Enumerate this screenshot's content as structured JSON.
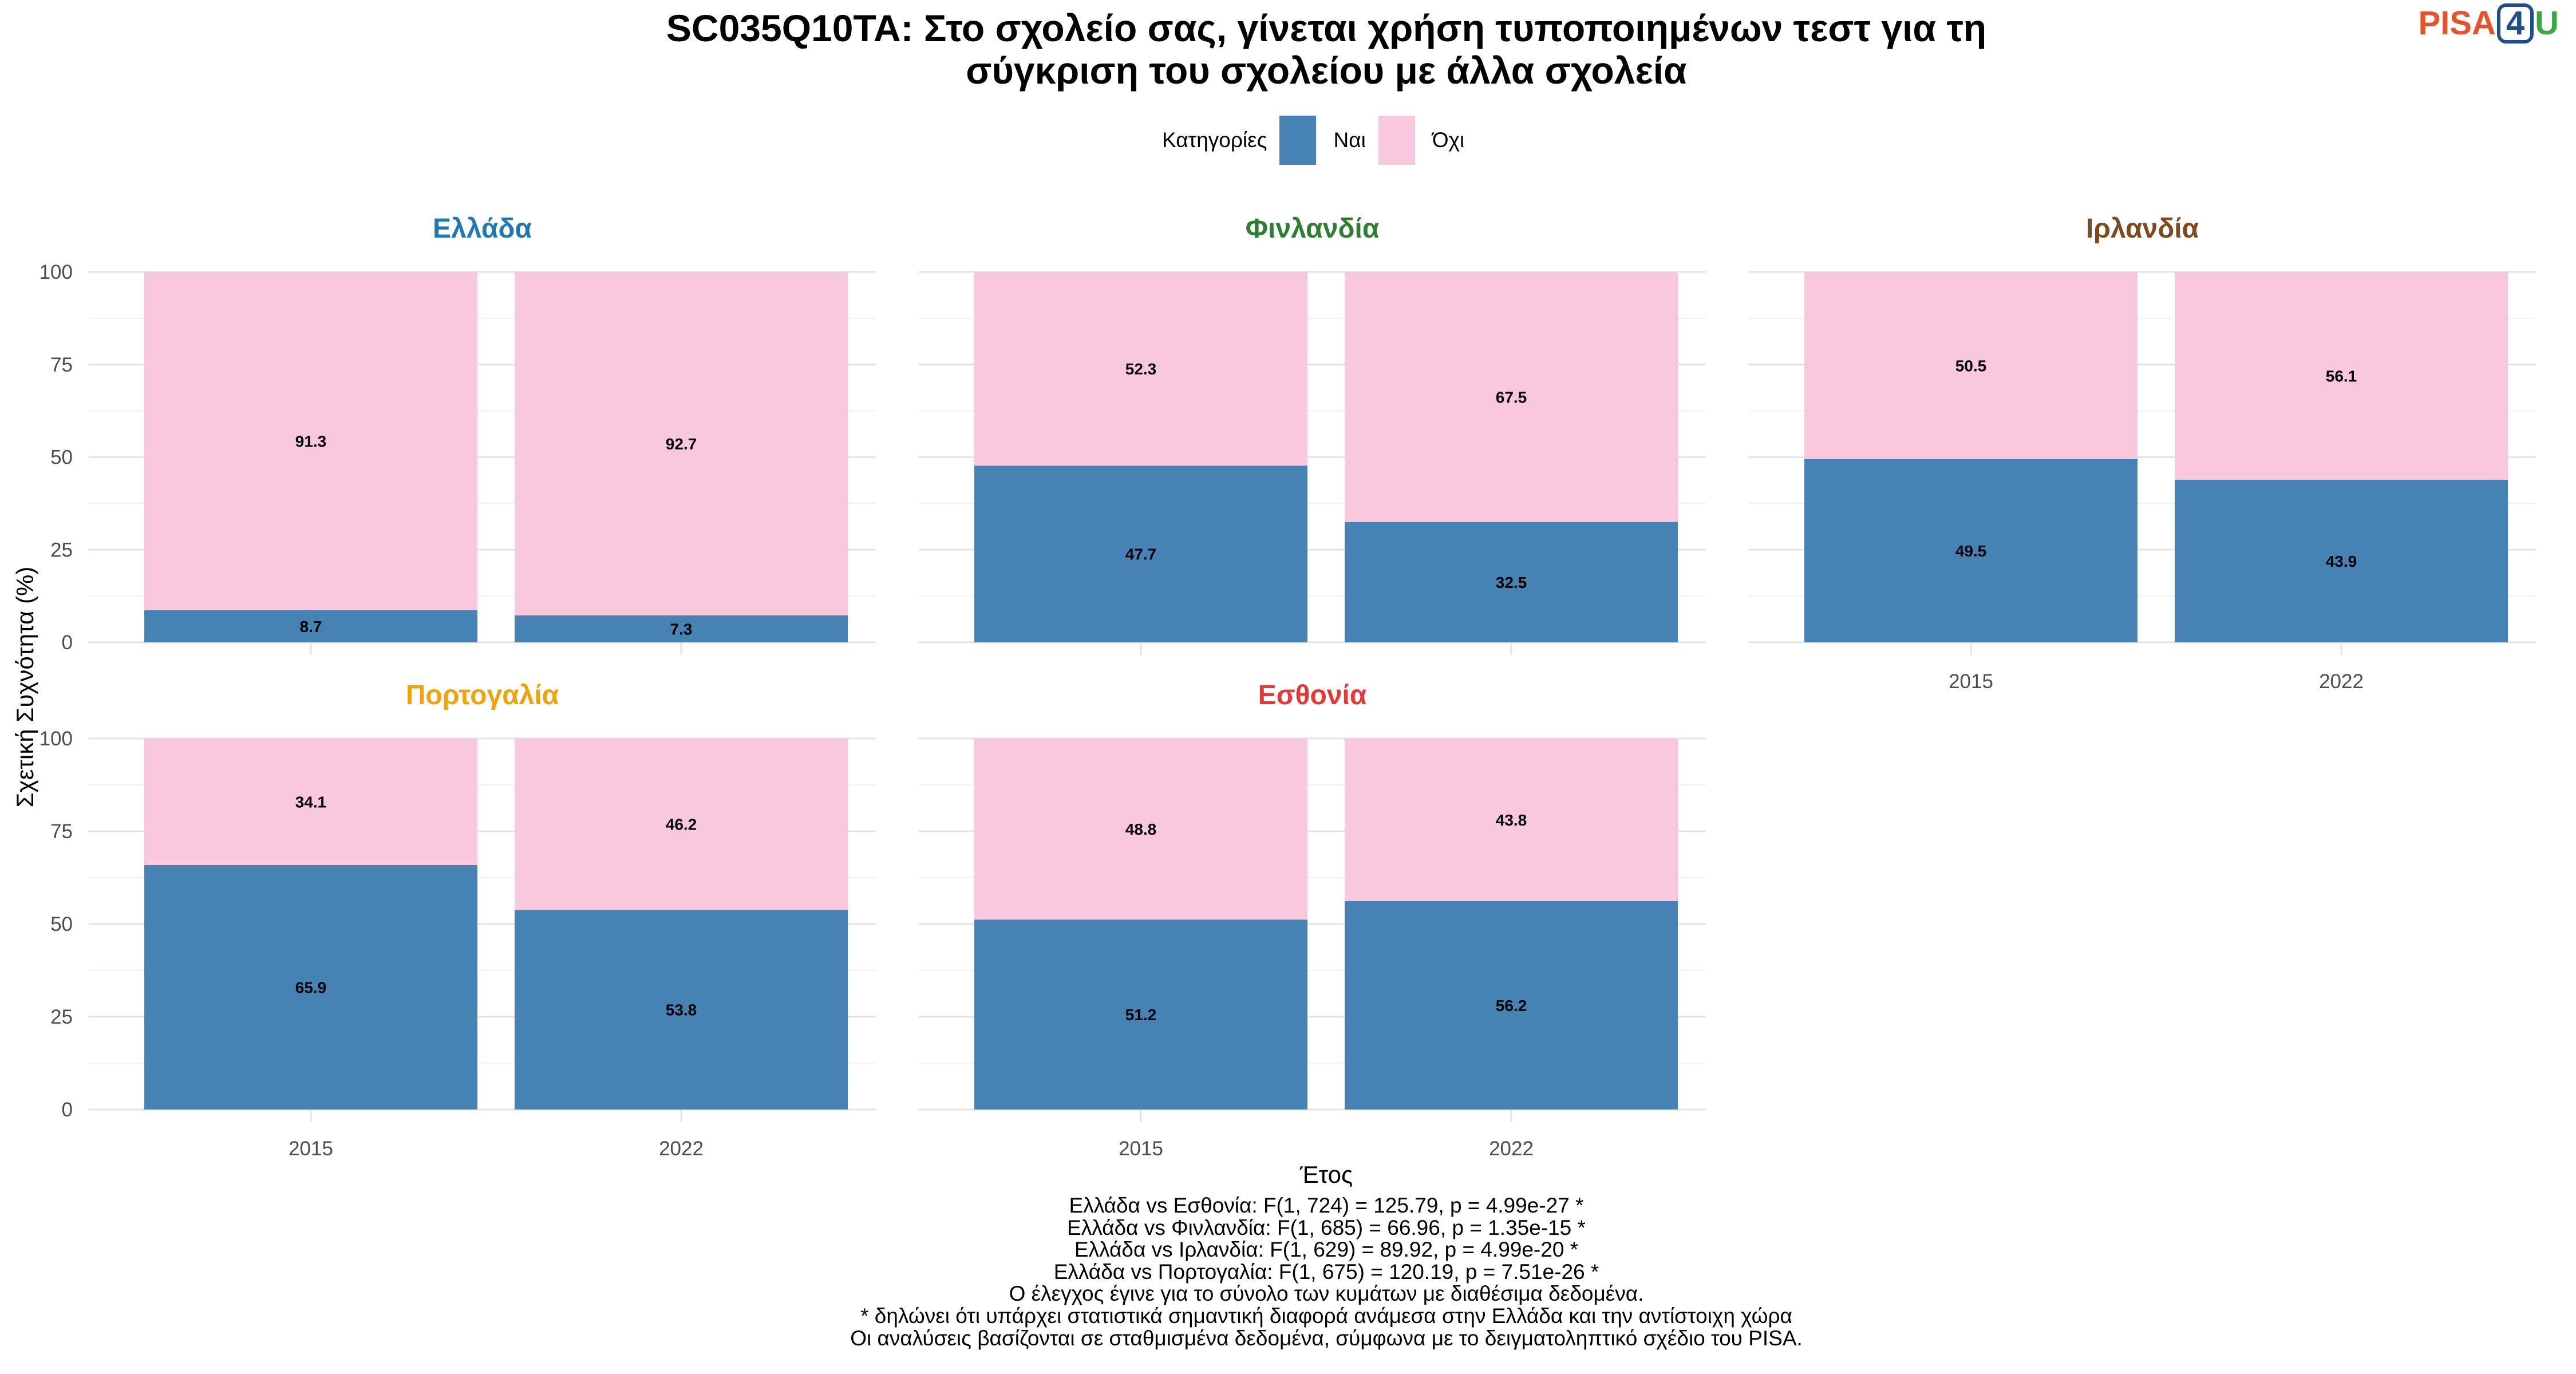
{
  "title": "SC035Q10TA: Στο σχολείο σας, γίνεται χρήση τυποποιημένων τεστ για τη\nσύγκριση του σχολείου με άλλα σχολεία",
  "logo": {
    "part1": "PISA",
    "part2": "4",
    "part3": "U"
  },
  "legend": {
    "title": "Κατηγορίες",
    "items": [
      {
        "label": "Ναι",
        "color": "#4682b4"
      },
      {
        "label": "Όχι",
        "color": "#f8c8dc"
      }
    ]
  },
  "chart_data": {
    "type": "bar",
    "stacked": true,
    "ylabel": "Σχετική Συχνότητα (%)",
    "xlabel": "Έτος",
    "ylim": [
      0,
      100
    ],
    "yticks": [
      0,
      25,
      50,
      75,
      100
    ],
    "categories": [
      "2015",
      "2022"
    ],
    "panels": [
      {
        "name": "Ελλάδα",
        "color": "#1f77b4",
        "series": [
          {
            "name": "Ναι",
            "values": [
              8.7,
              7.3
            ]
          },
          {
            "name": "Όχι",
            "values": [
              91.3,
              92.7
            ]
          }
        ]
      },
      {
        "name": "Φινλανδία",
        "color": "#2e7d32",
        "series": [
          {
            "name": "Ναι",
            "values": [
              47.7,
              32.5
            ]
          },
          {
            "name": "Όχι",
            "values": [
              52.3,
              67.5
            ]
          }
        ]
      },
      {
        "name": "Ιρλανδία",
        "color": "#7b4a1e",
        "series": [
          {
            "name": "Ναι",
            "values": [
              49.5,
              43.9
            ]
          },
          {
            "name": "Όχι",
            "values": [
              50.5,
              56.1
            ]
          }
        ]
      },
      {
        "name": "Πορτογαλία",
        "color": "#f0a30a",
        "series": [
          {
            "name": "Ναι",
            "values": [
              65.9,
              53.8
            ]
          },
          {
            "name": "Όχι",
            "values": [
              34.1,
              46.2
            ]
          }
        ]
      },
      {
        "name": "Εσθονία",
        "color": "#e53935",
        "series": [
          {
            "name": "Ναι",
            "values": [
              51.2,
              56.2
            ]
          },
          {
            "name": "Όχι",
            "values": [
              48.8,
              43.8
            ]
          }
        ]
      }
    ]
  },
  "footnotes": [
    "Ελλάδα vs Εσθονία: F(1, 724) = 125.79, p = 4.99e-27 *",
    "Ελλάδα vs Φινλανδία: F(1, 685) = 66.96, p = 1.35e-15 *",
    "Ελλάδα vs Ιρλανδία: F(1, 629) = 89.92, p = 4.99e-20 *",
    "Ελλάδα vs Πορτογαλία: F(1, 675) = 120.19, p = 7.51e-26 *",
    "Ο έλεγχος έγινε για το σύνολο των κυμάτων με διαθέσιμα δεδομένα.",
    "* δηλώνει ότι υπάρχει στατιστικά σημαντική διαφορά ανάμεσα στην Ελλάδα και την αντίστοιχη χώρα",
    "Οι αναλύσεις βασίζονται σε σταθμισμένα δεδομένα, σύμφωνα με το δειγματοληπτικό σχέδιο του PISA."
  ]
}
